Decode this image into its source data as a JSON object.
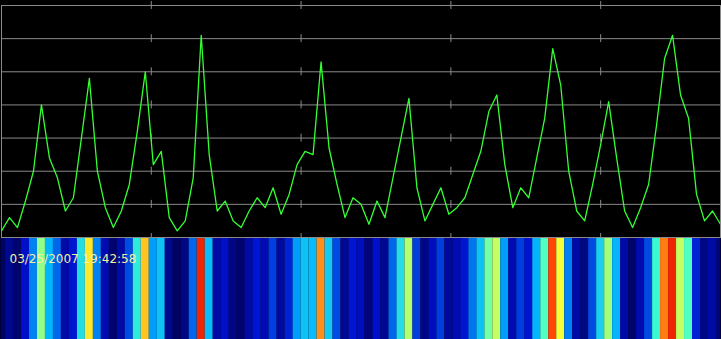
{
  "chart_data": {
    "type": "line",
    "x": [
      0,
      8,
      16,
      24,
      32,
      40,
      48,
      56,
      64,
      72,
      80,
      88,
      96,
      104,
      112,
      120,
      128,
      136,
      144,
      152,
      160,
      168,
      176,
      184,
      192,
      200,
      208,
      216,
      224,
      232,
      240,
      248,
      256,
      264,
      272,
      280,
      288,
      296,
      304,
      312,
      320,
      328,
      336,
      344,
      352,
      360,
      368,
      376,
      384,
      392,
      400,
      408,
      416,
      424,
      432,
      440,
      448,
      456,
      464,
      472,
      480,
      488,
      496,
      504,
      512,
      520,
      528,
      536,
      544,
      552,
      560,
      568,
      576,
      584,
      592,
      600,
      608,
      616,
      624,
      632,
      640,
      648,
      656,
      664,
      672,
      680,
      688,
      696,
      704,
      712,
      720
    ],
    "values": [
      0.2,
      0.6,
      0.3,
      1.1,
      2.0,
      4.0,
      2.4,
      1.8,
      0.8,
      1.2,
      3.0,
      4.8,
      2.0,
      0.9,
      0.3,
      0.8,
      1.6,
      3.2,
      5.0,
      2.2,
      2.6,
      0.6,
      0.2,
      0.5,
      1.8,
      6.1,
      2.5,
      0.8,
      1.1,
      0.5,
      0.3,
      0.8,
      1.2,
      0.9,
      1.5,
      0.7,
      1.3,
      2.2,
      2.6,
      2.5,
      5.3,
      2.7,
      1.6,
      0.6,
      1.2,
      1.0,
      0.4,
      1.1,
      0.6,
      1.8,
      3.0,
      4.2,
      1.5,
      0.5,
      1.0,
      1.5,
      0.7,
      0.9,
      1.2,
      1.9,
      2.6,
      3.8,
      4.3,
      2.2,
      0.9,
      1.5,
      1.2,
      2.4,
      3.6,
      5.7,
      4.6,
      2.0,
      0.8,
      0.5,
      1.6,
      2.8,
      4.1,
      2.4,
      0.8,
      0.3,
      0.9,
      1.6,
      3.4,
      5.4,
      6.1,
      4.3,
      3.6,
      1.3,
      0.5,
      0.8,
      0.4
    ],
    "color": "#33ff33",
    "xlim": [
      0,
      720
    ],
    "xticks": [
      150,
      300,
      450,
      600
    ],
    "ylim": [
      0,
      7
    ],
    "yticks": [
      0,
      1,
      2,
      3,
      4,
      5,
      6,
      7
    ],
    "grid": true,
    "tick_labels": false,
    "annotations": [
      "03/25/2007 19:42:58"
    ]
  }
}
